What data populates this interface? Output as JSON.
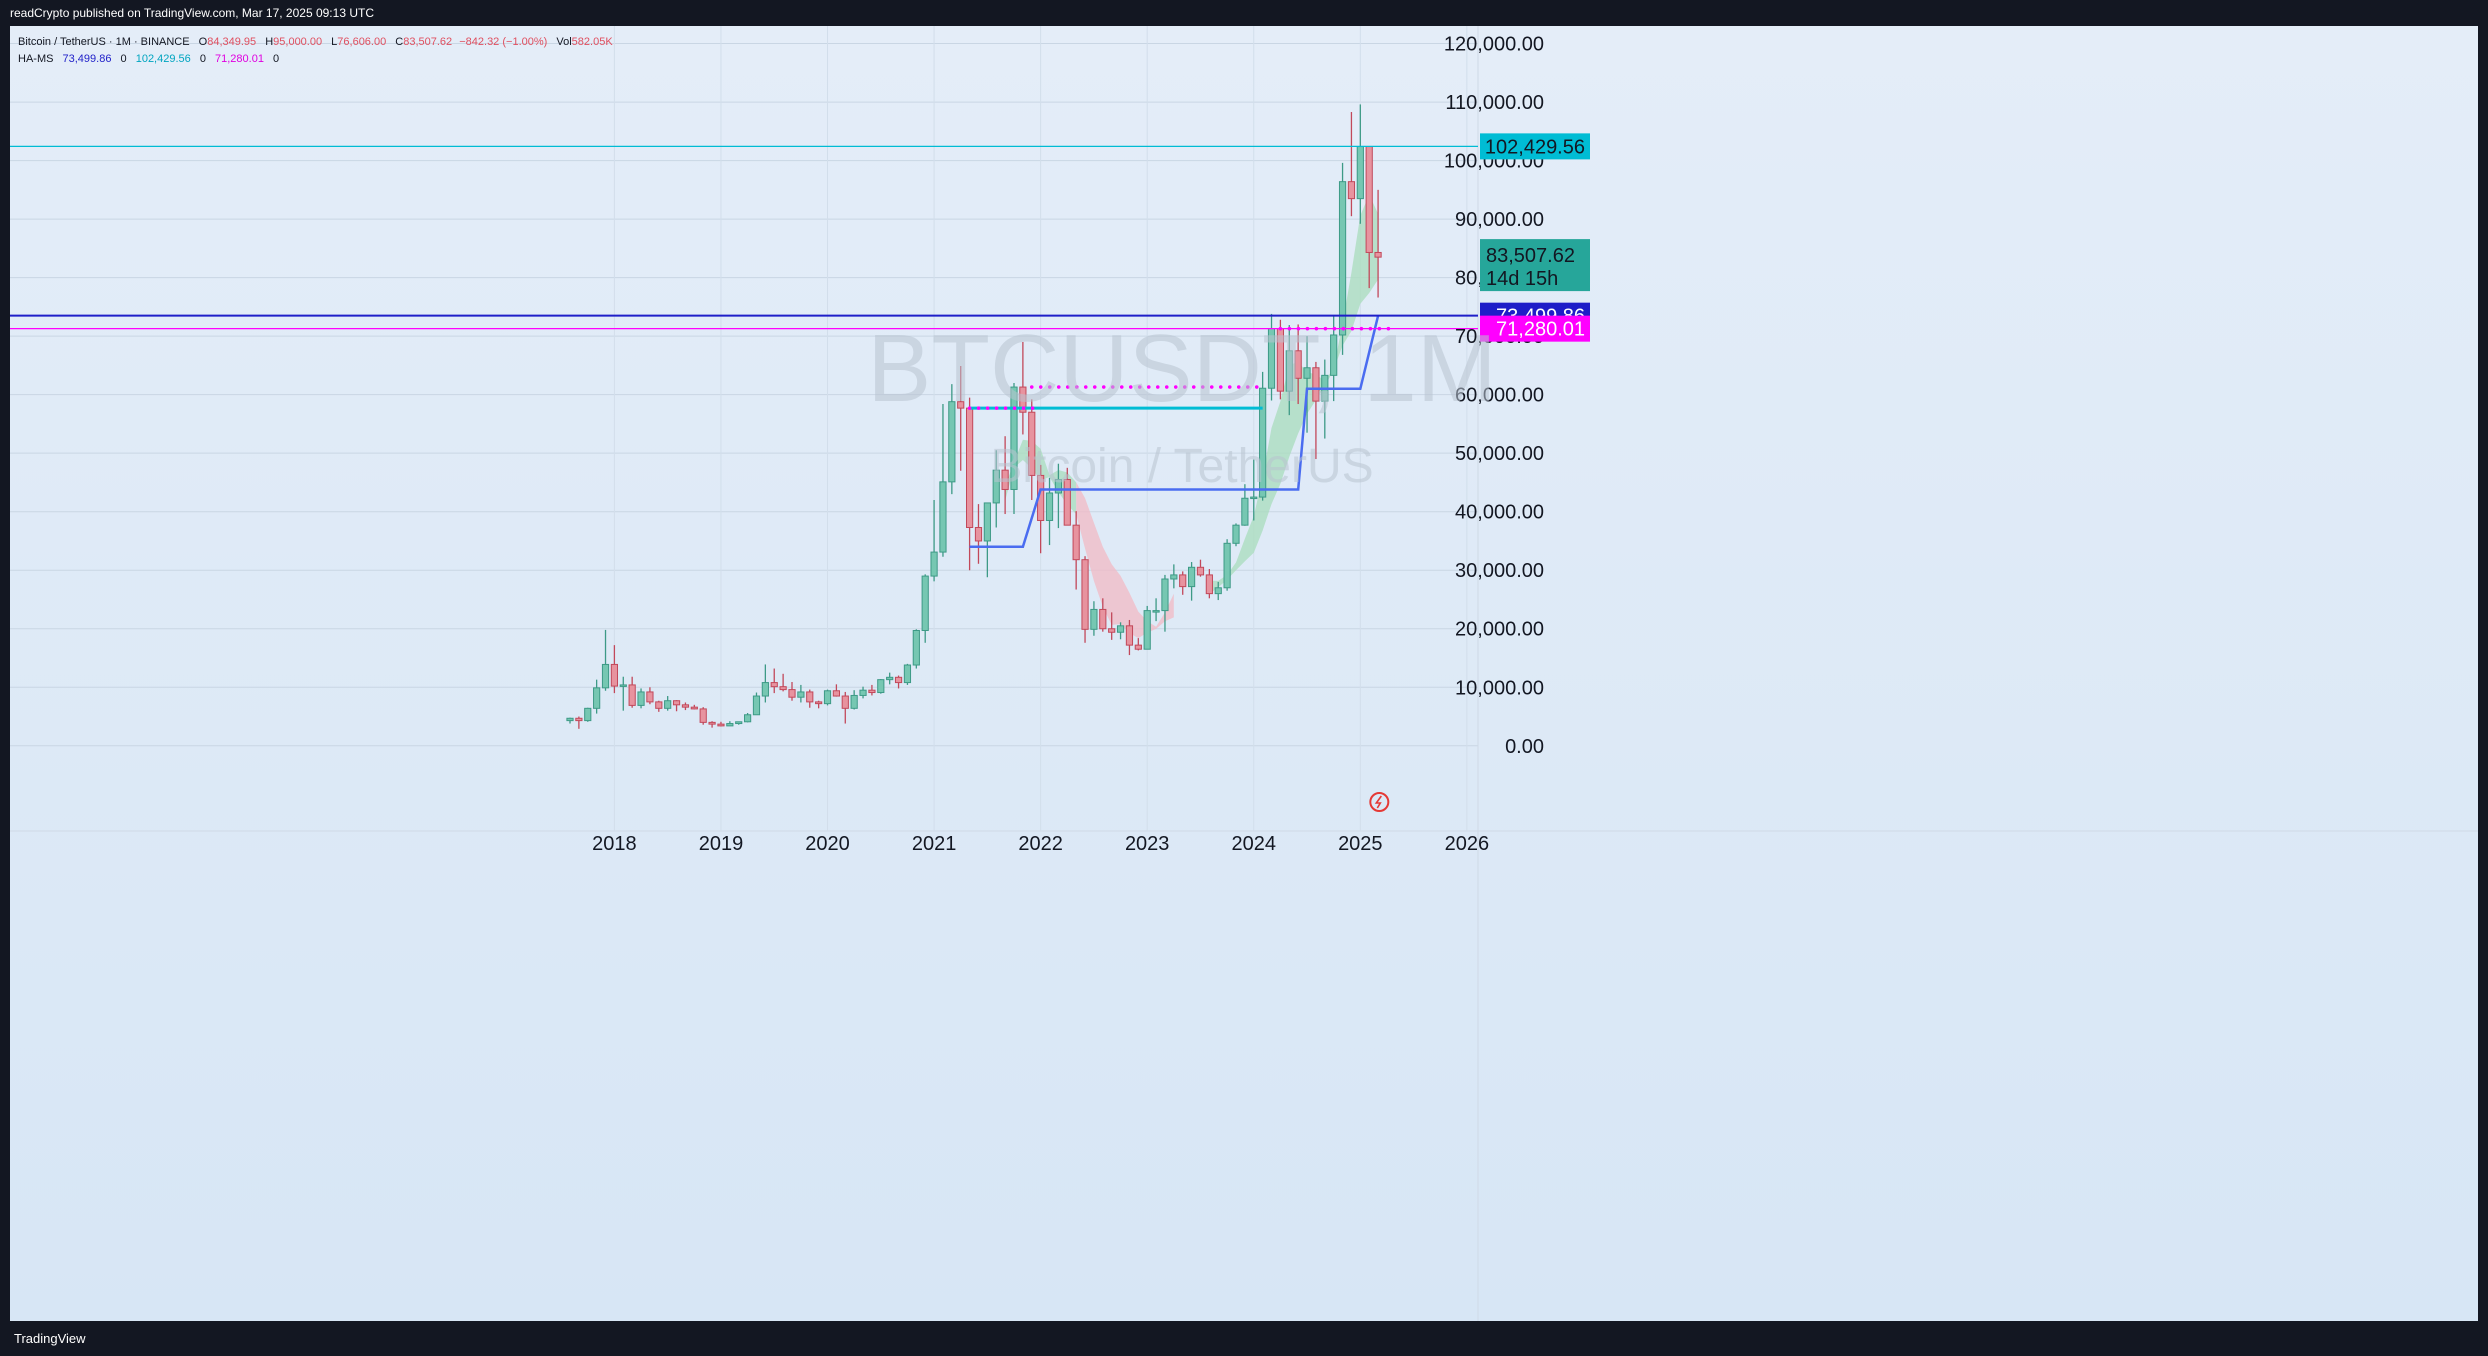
{
  "header": {
    "published": "readCrypto published on TradingView.com, Mar 17, 2025 09:13 UTC"
  },
  "legend": {
    "symbol": "Bitcoin / TetherUS · 1M · BINANCE",
    "o_key": "O",
    "o": "84,349.95",
    "h_key": "H",
    "h": "95,000.00",
    "l_key": "L",
    "l": "76,606.00",
    "c_key": "C",
    "c": "83,507.62",
    "change": "−842.32 (−1.00%)",
    "vol_key": "Vol",
    "vol": "582.05K",
    "indicator_name": "HA-MS",
    "ind_v1": "73,499.86",
    "ind_z1": "0",
    "ind_v2": "102,429.56",
    "ind_z2": "0",
    "ind_v3": "71,280.01",
    "ind_z3": "0"
  },
  "watermark": {
    "symbol": "BTCUSDT, 1M",
    "name": "Bitcoin / TetherUS"
  },
  "footer": {
    "brand": "TradingView"
  },
  "colors": {
    "up": "#76c7b2",
    "down": "#e7939f",
    "up_border": "#3d9a86",
    "down_border": "#c2485a",
    "cyan": "#00bcd4",
    "blue": "#1e1ec8",
    "magenta": "#ff00ff",
    "last_price": "#26a69a",
    "trail": "#4a6cf0",
    "band_green": "#a8dcbc",
    "band_red": "#f1b9c4"
  },
  "chart_data": {
    "type": "candlestick",
    "symbol": "BTCUSDT",
    "interval": "1M",
    "x_axis": {
      "ticks": [
        "2018",
        "2019",
        "2020",
        "2021",
        "2022",
        "2023",
        "2024",
        "2025",
        "2026"
      ]
    },
    "y_axis": {
      "position": "right",
      "ticks": [
        "120,000.00",
        "110,000.00",
        "100,000.00",
        "90,000.00",
        "80,000.00",
        "70,000.00",
        "60,000.00",
        "50,000.00",
        "40,000.00",
        "30,000.00",
        "20,000.00",
        "10,000.00",
        "0.00"
      ],
      "tick_values": [
        120000,
        110000,
        100000,
        90000,
        80000,
        70000,
        60000,
        50000,
        40000,
        30000,
        20000,
        10000,
        0
      ],
      "range": [
        -12000,
        123000
      ]
    },
    "price_lines": [
      {
        "name": "resistance",
        "value": 102429.56,
        "label": "102,429.56",
        "color": "#00bcd4"
      },
      {
        "name": "ha-ms-1",
        "value": 73499.86,
        "label": "73,499.86",
        "color": "#1e1ec8"
      },
      {
        "name": "ha-ms-3",
        "value": 71280.01,
        "label": "71,280.01",
        "color": "#ff00ff"
      }
    ],
    "last_price": {
      "value": 83507.62,
      "label": "83,507.62",
      "countdown": "14d 15h"
    },
    "candles_monthly_from_2017_08": [
      [
        4300,
        4800,
        3800,
        4700
      ],
      [
        4700,
        5000,
        2900,
        4300
      ],
      [
        4300,
        6500,
        4100,
        6400
      ],
      [
        6400,
        11300,
        5500,
        9900
      ],
      [
        9900,
        19800,
        9400,
        13900
      ],
      [
        13900,
        17200,
        9000,
        10200
      ],
      [
        10200,
        11800,
        6000,
        10400
      ],
      [
        10400,
        11800,
        6500,
        6900
      ],
      [
        6900,
        9800,
        6400,
        9200
      ],
      [
        9200,
        10000,
        7100,
        7500
      ],
      [
        7500,
        7700,
        5800,
        6400
      ],
      [
        6400,
        8500,
        6000,
        7700
      ],
      [
        7700,
        7800,
        5900,
        7000
      ],
      [
        7000,
        7400,
        6100,
        6600
      ],
      [
        6600,
        7000,
        6200,
        6300
      ],
      [
        6300,
        6600,
        3600,
        4000
      ],
      [
        4000,
        4200,
        3100,
        3700
      ],
      [
        3700,
        4100,
        3300,
        3400
      ],
      [
        3400,
        4200,
        3400,
        3800
      ],
      [
        3800,
        4100,
        3600,
        4100
      ],
      [
        4100,
        5600,
        4000,
        5300
      ],
      [
        5300,
        9100,
        5300,
        8500
      ],
      [
        8500,
        13900,
        7400,
        10800
      ],
      [
        10800,
        13200,
        9000,
        10100
      ],
      [
        10100,
        12300,
        9300,
        9600
      ],
      [
        9600,
        10900,
        7700,
        8300
      ],
      [
        8300,
        10400,
        7400,
        9200
      ],
      [
        9200,
        9600,
        6500,
        7500
      ],
      [
        7500,
        7700,
        6400,
        7200
      ],
      [
        7200,
        9600,
        6900,
        9400
      ],
      [
        9400,
        10500,
        8400,
        8500
      ],
      [
        8500,
        9200,
        3800,
        6400
      ],
      [
        6400,
        9500,
        6200,
        8600
      ],
      [
        8600,
        10100,
        8100,
        9500
      ],
      [
        9500,
        10400,
        8600,
        9100
      ],
      [
        9100,
        11400,
        8900,
        11300
      ],
      [
        11300,
        12500,
        10500,
        11700
      ],
      [
        11700,
        12000,
        9800,
        10800
      ],
      [
        10800,
        14000,
        10400,
        13800
      ],
      [
        13800,
        19900,
        13200,
        19700
      ],
      [
        19700,
        29300,
        17600,
        29000
      ],
      [
        29000,
        42000,
        28100,
        33100
      ],
      [
        33100,
        58400,
        32300,
        45100
      ],
      [
        45100,
        61800,
        43000,
        58800
      ],
      [
        58800,
        64900,
        47000,
        57700
      ],
      [
        57700,
        59500,
        30000,
        37300
      ],
      [
        37300,
        41300,
        31100,
        35000
      ],
      [
        35000,
        36700,
        28800,
        41500
      ],
      [
        41500,
        50500,
        37300,
        47100
      ],
      [
        47100,
        52900,
        39600,
        43800
      ],
      [
        43800,
        62000,
        39600,
        61300
      ],
      [
        61300,
        69000,
        53200,
        57000
      ],
      [
        57000,
        59200,
        42000,
        46200
      ],
      [
        46200,
        48000,
        32900,
        38500
      ],
      [
        38500,
        45800,
        34300,
        43200
      ],
      [
        43200,
        48200,
        37200,
        45500
      ],
      [
        45500,
        47500,
        37700,
        37700
      ],
      [
        37700,
        40100,
        26700,
        31800
      ],
      [
        31800,
        32400,
        17600,
        19900
      ],
      [
        19900,
        24700,
        18800,
        23300
      ],
      [
        23300,
        25200,
        19500,
        20000
      ],
      [
        20000,
        22800,
        18100,
        19400
      ],
      [
        19400,
        21100,
        18200,
        20500
      ],
      [
        20500,
        21500,
        15500,
        17200
      ],
      [
        17200,
        18400,
        16300,
        16500
      ],
      [
        16500,
        23900,
        16500,
        23100
      ],
      [
        23100,
        25200,
        21300,
        23100
      ],
      [
        23100,
        29200,
        19500,
        28500
      ],
      [
        28500,
        31000,
        26900,
        29200
      ],
      [
        29200,
        29800,
        25800,
        27200
      ],
      [
        27200,
        31400,
        24800,
        30500
      ],
      [
        30500,
        31800,
        28900,
        29200
      ],
      [
        29200,
        30200,
        25200,
        26000
      ],
      [
        26000,
        28000,
        24900,
        27000
      ],
      [
        27000,
        35300,
        26500,
        34600
      ],
      [
        34600,
        38000,
        34100,
        37700
      ],
      [
        37700,
        44700,
        37600,
        42300
      ],
      [
        42300,
        48900,
        38500,
        42500
      ],
      [
        42500,
        63900,
        41900,
        61100
      ],
      [
        61100,
        73800,
        59000,
        71300
      ],
      [
        71300,
        72800,
        59200,
        60600
      ],
      [
        60600,
        71900,
        56500,
        67500
      ],
      [
        67500,
        72000,
        58400,
        62800
      ],
      [
        62800,
        70000,
        53500,
        64600
      ],
      [
        64600,
        65600,
        49000,
        58900
      ],
      [
        58900,
        66000,
        52500,
        63300
      ],
      [
        63300,
        73600,
        58900,
        70200
      ],
      [
        70200,
        99600,
        66800,
        96400
      ],
      [
        96400,
        108300,
        90500,
        93500
      ],
      [
        93500,
        109600,
        89200,
        102400
      ],
      [
        102400,
        102500,
        78200,
        84300
      ],
      [
        84300,
        95000,
        76600,
        83500
      ]
    ],
    "ha_ms_levels": [
      {
        "name": "ha-ms-1",
        "value": 73499.86
      },
      {
        "name": "ha-ms-2",
        "value": 102429.56
      },
      {
        "name": "ha-ms-3",
        "value": 71280.01
      }
    ]
  }
}
